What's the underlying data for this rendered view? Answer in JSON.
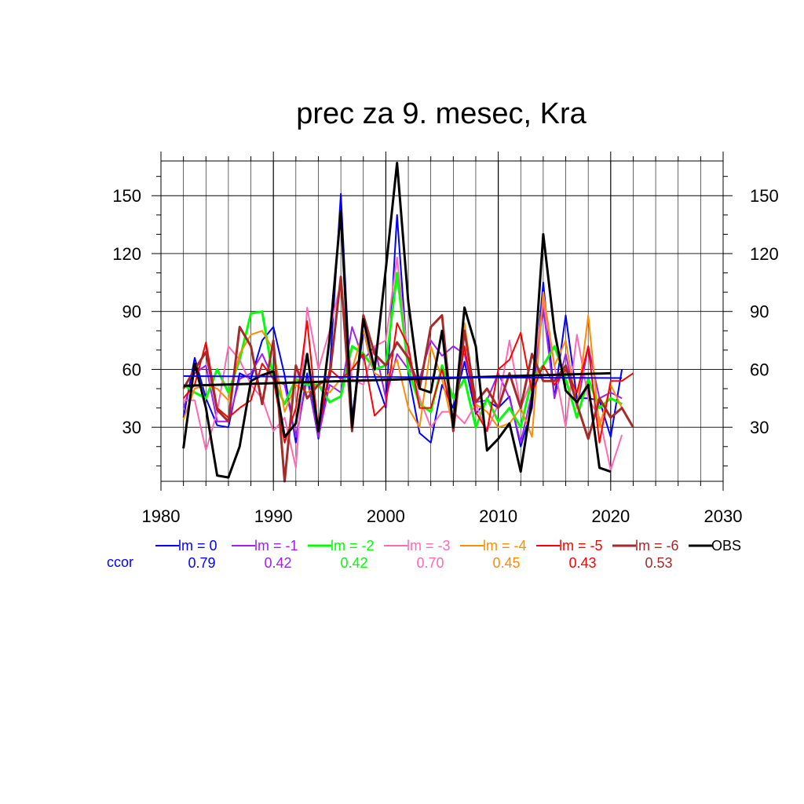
{
  "chart_data": {
    "type": "line",
    "title": "prec za 9. mesec, Kra",
    "xlim": [
      1980,
      2030
    ],
    "ylim": [
      2,
      168
    ],
    "x_ticks": [
      1980,
      1990,
      2000,
      2010,
      2020,
      2030
    ],
    "x_tick_labels": [
      "1980",
      "1990",
      "2000",
      "2010",
      "2020",
      "2030"
    ],
    "y_ticks": [
      30,
      60,
      90,
      120,
      150
    ],
    "y_tick_labels": [
      "30",
      "60",
      "90",
      "120",
      "150"
    ],
    "grid": true,
    "legend_position": "bottom",
    "ccor_label": "ccor",
    "ccor_color": "#0000ff",
    "series": [
      {
        "name": "lm = 0",
        "color": "#0000ff",
        "width": 2,
        "ccor": "0.79",
        "x": [
          1982,
          1983,
          1984,
          1985,
          1986,
          1987,
          1988,
          1989,
          1990,
          1991,
          1992,
          1993,
          1994,
          1995,
          1996,
          1997,
          1998,
          1999,
          2000,
          2001,
          2002,
          2003,
          2004,
          2005,
          2006,
          2007,
          2008,
          2009,
          2010,
          2011,
          2012,
          2013,
          2014,
          2015,
          2016,
          2017,
          2018,
          2019,
          2020,
          2021
        ],
        "y": [
          35,
          66,
          45,
          31,
          30,
          58,
          55,
          75,
          82,
          57,
          22,
          58,
          24,
          58,
          151,
          35,
          80,
          57,
          40,
          140,
          58,
          27,
          22,
          52,
          40,
          64,
          37,
          44,
          40,
          46,
          20,
          40,
          105,
          45,
          88,
          45,
          45,
          44,
          25,
          60
        ]
      },
      {
        "name": "lm = -1",
        "color": "#a020f0",
        "width": 2,
        "ccor": "0.42",
        "x": [
          1982,
          1983,
          1984,
          1985,
          1986,
          1987,
          1988,
          1989,
          1990,
          1991,
          1992,
          1993,
          1994,
          1995,
          1996,
          1997,
          1998,
          1999,
          2000,
          2001,
          2002,
          2003,
          2004,
          2005,
          2006,
          2007,
          2008,
          2009,
          2010,
          2011,
          2012,
          2013,
          2014,
          2015,
          2016,
          2017,
          2018,
          2019,
          2020,
          2021
        ],
        "y": [
          40,
          58,
          62,
          33,
          33,
          55,
          58,
          68,
          55,
          52,
          25,
          55,
          25,
          52,
          48,
          82,
          65,
          72,
          45,
          68,
          60,
          55,
          75,
          67,
          72,
          68,
          43,
          44,
          58,
          45,
          22,
          48,
          92,
          45,
          68,
          40,
          72,
          45,
          48,
          45
        ]
      },
      {
        "name": "lm = -2",
        "color": "#00ff00",
        "width": 3,
        "ccor": "0.42",
        "x": [
          1982,
          1983,
          1984,
          1985,
          1986,
          1987,
          1988,
          1989,
          1990,
          1991,
          1992,
          1993,
          1994,
          1995,
          1996,
          1997,
          1998,
          1999,
          2000,
          2001,
          2002,
          2003,
          2004,
          2005,
          2006,
          2007,
          2008,
          2009,
          2010,
          2011,
          2012,
          2013,
          2014,
          2015,
          2016,
          2017,
          2018,
          2019,
          2020,
          2021
        ],
        "y": [
          52,
          48,
          45,
          60,
          48,
          65,
          89,
          90,
          55,
          42,
          55,
          52,
          52,
          43,
          46,
          72,
          68,
          60,
          62,
          110,
          60,
          42,
          38,
          62,
          45,
          55,
          30,
          45,
          33,
          40,
          30,
          55,
          62,
          72,
          55,
          35,
          55,
          40,
          45,
          42
        ]
      },
      {
        "name": "lm = -3",
        "color": "#ff69b4",
        "width": 2,
        "ccor": "0.70",
        "x": [
          1982,
          1983,
          1984,
          1985,
          1986,
          1987,
          1988,
          1989,
          1990,
          1991,
          1992,
          1993,
          1994,
          1995,
          1996,
          1997,
          1998,
          1999,
          2000,
          2001,
          2002,
          2003,
          2004,
          2005,
          2006,
          2007,
          2008,
          2009,
          2010,
          2011,
          2012,
          2013,
          2014,
          2015,
          2016,
          2017,
          2018,
          2019,
          2020,
          2021
        ],
        "y": [
          44,
          44,
          18,
          38,
          72,
          65,
          52,
          45,
          28,
          35,
          9,
          92,
          60,
          80,
          105,
          55,
          52,
          72,
          75,
          118,
          65,
          45,
          30,
          38,
          38,
          32,
          42,
          28,
          42,
          75,
          40,
          55,
          95,
          62,
          30,
          78,
          45,
          35,
          8,
          26
        ]
      },
      {
        "name": "lm = -4",
        "color": "#ff8c00",
        "width": 2,
        "ccor": "0.45",
        "x": [
          1982,
          1983,
          1984,
          1985,
          1986,
          1987,
          1988,
          1989,
          1990,
          1991,
          1992,
          1993,
          1994,
          1995,
          1996,
          1997,
          1998,
          1999,
          2000,
          2001,
          2002,
          2003,
          2004,
          2005,
          2006,
          2007,
          2008,
          2009,
          2010,
          2011,
          2012,
          2013,
          2014,
          2015,
          2016,
          2017,
          2018,
          2019,
          2020,
          2021
        ],
        "y": [
          34,
          50,
          52,
          50,
          44,
          68,
          78,
          80,
          70,
          38,
          52,
          48,
          52,
          48,
          55,
          60,
          80,
          58,
          55,
          65,
          40,
          30,
          72,
          55,
          30,
          84,
          42,
          38,
          30,
          32,
          40,
          25,
          100,
          62,
          75,
          40,
          88,
          30,
          52,
          40
        ]
      },
      {
        "name": "lm = -5",
        "color": "#ff0000",
        "width": 2,
        "ccor": "0.43",
        "x": [
          1982,
          1983,
          1984,
          1985,
          1986,
          1987,
          1988,
          1989,
          1990,
          1991,
          1992,
          1993,
          1994,
          1995,
          1996,
          1997,
          1998,
          1999,
          2000,
          2001,
          2002,
          2003,
          2004,
          2005,
          2006,
          2007,
          2008,
          2009,
          2010,
          2011,
          2012,
          2013,
          2014,
          2015,
          2016,
          2017,
          2018,
          2019,
          2020,
          2021,
          2022
        ],
        "y": [
          45,
          52,
          74,
          40,
          35,
          40,
          44,
          63,
          55,
          22,
          40,
          85,
          28,
          60,
          55,
          60,
          68,
          36,
          42,
          84,
          72,
          40,
          40,
          60,
          34,
          72,
          38,
          28,
          60,
          65,
          79,
          48,
          62,
          52,
          60,
          48,
          72,
          22,
          54,
          54,
          58
        ]
      },
      {
        "name": "lm = -6",
        "color": "#a52a2a",
        "width": 3,
        "ccor": "0.53",
        "x": [
          1982,
          1983,
          1984,
          1985,
          1986,
          1987,
          1988,
          1989,
          1990,
          1991,
          1992,
          1993,
          1994,
          1995,
          1996,
          1997,
          1998,
          1999,
          2000,
          2001,
          2002,
          2003,
          2004,
          2005,
          2006,
          2007,
          2008,
          2009,
          2010,
          2011,
          2012,
          2013,
          2014,
          2015,
          2016,
          2017,
          2018,
          2019,
          2020,
          2021,
          2022
        ],
        "y": [
          50,
          60,
          69,
          39,
          33,
          82,
          72,
          42,
          75,
          2,
          62,
          45,
          52,
          56,
          108,
          28,
          88,
          68,
          62,
          74,
          66,
          50,
          82,
          88,
          28,
          80,
          43,
          50,
          40,
          58,
          40,
          68,
          54,
          54,
          62,
          42,
          24,
          45,
          35,
          40,
          30
        ]
      },
      {
        "name": "OBS",
        "color": "#000000",
        "width": 3,
        "ccor": "",
        "x": [
          1982,
          1983,
          1984,
          1985,
          1986,
          1987,
          1988,
          1989,
          1990,
          1991,
          1992,
          1993,
          1994,
          1995,
          1996,
          1997,
          1998,
          1999,
          2000,
          2001,
          2002,
          2003,
          2004,
          2005,
          2006,
          2007,
          2008,
          2009,
          2010,
          2011,
          2012,
          2013,
          2014,
          2015,
          2016,
          2017,
          2018,
          2019,
          2020
        ],
        "y": [
          19,
          63,
          40,
          5,
          4,
          20,
          54,
          57,
          59,
          25,
          32,
          68,
          28,
          76,
          142,
          30,
          86,
          60,
          112,
          167,
          95,
          50,
          48,
          80,
          30,
          92,
          72,
          18,
          24,
          32,
          7,
          45,
          130,
          80,
          49,
          43,
          52,
          9,
          7
        ]
      }
    ],
    "trend_lines": [
      {
        "series": "OBS",
        "color": "#000000",
        "width": 3,
        "x": [
          1982,
          2020
        ],
        "y": [
          51.5,
          58
        ]
      },
      {
        "series": "lm = 0",
        "color": "#0000ff",
        "width": 2,
        "x": [
          1982,
          2021
        ],
        "y": [
          56.5,
          55.5
        ]
      }
    ]
  }
}
